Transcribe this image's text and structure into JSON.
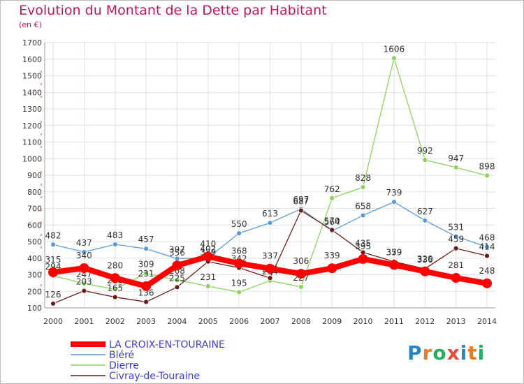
{
  "chart_data": {
    "type": "line",
    "title": "Evolution du Montant de la Dette par Habitant",
    "subtitle": "(en €)",
    "x": [
      "2000",
      "2001",
      "2002",
      "2003",
      "2004",
      "2005",
      "2006",
      "2007",
      "2008",
      "2009",
      "2010",
      "2011",
      "2012",
      "2013",
      "2014"
    ],
    "ylim": [
      100,
      1700
    ],
    "yticks": [
      100,
      200,
      300,
      400,
      500,
      600,
      700,
      800,
      900,
      1000,
      1100,
      1200,
      1300,
      1400,
      1500,
      1600,
      1700
    ],
    "grid": true,
    "legend_position": "bottom-left",
    "series": [
      {
        "name": "LA CROIX-EN-TOURAINE",
        "color": "#ff0000",
        "values": [
          315,
          340,
          280,
          231,
          356,
          410,
          368,
          337,
          306,
          339,
          395,
          359,
          320,
          281,
          248
        ]
      },
      {
        "name": "Bléré",
        "color": "#5b9bd5",
        "values": [
          482,
          437,
          483,
          457,
          397,
          402,
          550,
          613,
          697,
          564,
          658,
          739,
          627,
          531,
          468
        ]
      },
      {
        "name": "Dierre",
        "color": "#8dd35f",
        "values": [
          294,
          247,
          212,
          309,
          268,
          231,
          195,
          264,
          227,
          762,
          828,
          1606,
          992,
          947,
          898
        ]
      },
      {
        "name": "Civray-de-Touraine",
        "color": "#6b1a1a",
        "values": [
          126,
          203,
          165,
          136,
          225,
          379,
          342,
          280,
          687,
          570,
          435,
          379,
          336,
          459,
          414
        ]
      }
    ]
  },
  "branding": {
    "logo_text": "Proxiti",
    "letter_colors": [
      "#2e86c1",
      "#e67e22",
      "#27ae60",
      "#e74c3c",
      "#2e86c1",
      "#e67e22",
      "#27ae60"
    ]
  }
}
